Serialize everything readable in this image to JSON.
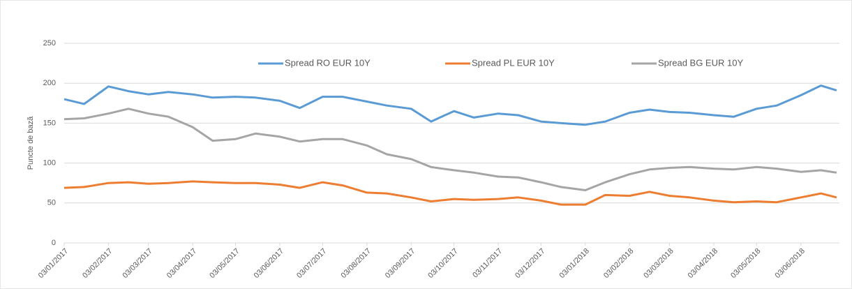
{
  "chart_data": {
    "type": "line",
    "y_label": "Puncte de bază",
    "x": [
      "03/01/2017",
      "17/01/2017",
      "03/02/2017",
      "17/02/2017",
      "03/03/2017",
      "17/03/2017",
      "03/04/2017",
      "17/04/2017",
      "03/05/2017",
      "17/05/2017",
      "03/06/2017",
      "17/06/2017",
      "03/07/2017",
      "17/07/2017",
      "03/08/2017",
      "17/08/2017",
      "03/09/2017",
      "17/09/2017",
      "03/10/2017",
      "17/10/2017",
      "03/11/2017",
      "17/11/2017",
      "03/12/2017",
      "17/12/2017",
      "03/01/2018",
      "17/01/2018",
      "03/02/2018",
      "17/02/2018",
      "03/03/2018",
      "17/03/2018",
      "03/04/2018",
      "17/04/2018",
      "03/05/2018",
      "17/05/2018",
      "03/06/2018",
      "17/06/2018",
      "28/06/2018"
    ],
    "series": [
      {
        "name": "Spread RO EUR 10Y",
        "color": "#5b9bd5",
        "values": [
          180,
          174,
          196,
          190,
          186,
          189,
          186,
          182,
          183,
          182,
          178,
          169,
          183,
          183,
          177,
          172,
          168,
          152,
          165,
          157,
          162,
          160,
          152,
          150,
          148,
          152,
          163,
          167,
          164,
          163,
          160,
          158,
          168,
          172,
          185,
          197,
          191
        ]
      },
      {
        "name": "Spread PL EUR 10Y",
        "color": "#ed7d31",
        "values": [
          69,
          70,
          75,
          76,
          74,
          75,
          77,
          76,
          75,
          75,
          73,
          69,
          76,
          72,
          63,
          62,
          57,
          52,
          55,
          54,
          55,
          57,
          53,
          48,
          48,
          60,
          59,
          64,
          59,
          57,
          53,
          51,
          52,
          51,
          57,
          62,
          57
        ]
      },
      {
        "name": "Spread BG EUR 10Y",
        "color": "#a5a5a5",
        "values": [
          155,
          156,
          162,
          168,
          162,
          158,
          145,
          128,
          130,
          137,
          133,
          127,
          130,
          130,
          122,
          111,
          105,
          95,
          91,
          88,
          83,
          82,
          76,
          70,
          66,
          76,
          86,
          92,
          94,
          95,
          93,
          92,
          95,
          93,
          89,
          91,
          88
        ]
      }
    ],
    "xlim": [
      "03/01/2017",
      "30/06/2018"
    ],
    "xticks": [
      "03/01/2017",
      "03/02/2017",
      "03/03/2017",
      "03/04/2017",
      "03/05/2017",
      "03/06/2017",
      "03/07/2017",
      "03/08/2017",
      "03/09/2017",
      "03/10/2017",
      "03/11/2017",
      "03/12/2017",
      "03/01/2018",
      "03/02/2018",
      "03/03/2018",
      "03/04/2018",
      "03/05/2018",
      "03/06/2018"
    ],
    "ylim": [
      0,
      250
    ],
    "yticks": [
      0,
      50,
      100,
      150,
      200,
      250
    ],
    "grid": true,
    "legend": "top"
  }
}
